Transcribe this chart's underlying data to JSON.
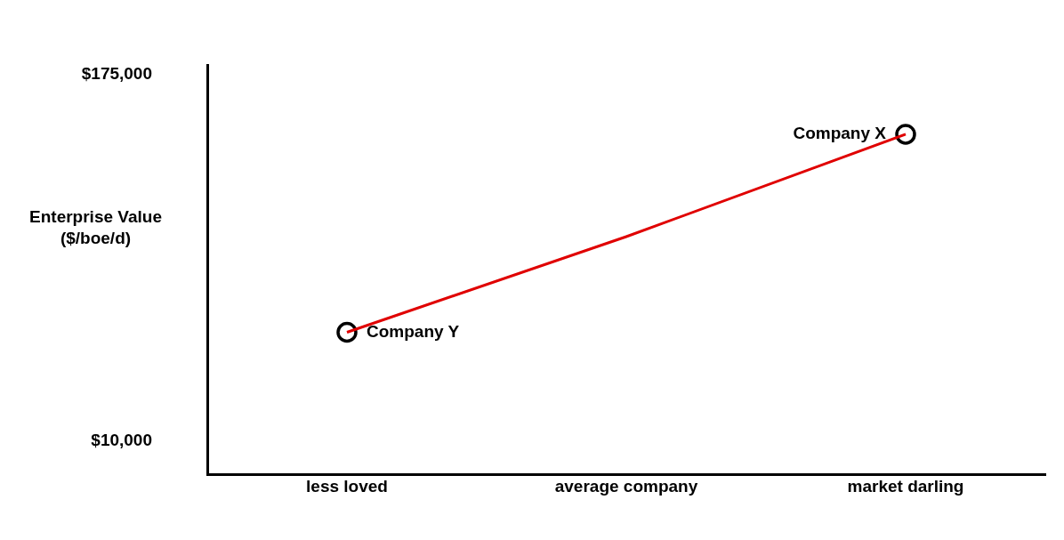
{
  "chart_data": {
    "type": "line",
    "ylabel": "Enterprise Value\n($/boe/d)",
    "categories": [
      "less loved",
      "average company",
      "market darling"
    ],
    "ylim": [
      -5000,
      179000
    ],
    "yticks": [
      {
        "value": 10000,
        "label": "$10,000"
      },
      {
        "value": 175000,
        "label": "$175,000"
      }
    ],
    "series": [
      {
        "color": "#e00000",
        "values": [
          59000,
          102000,
          148000
        ],
        "marker": "none"
      },
      {
        "type": "scatter",
        "color": "#000000",
        "x": [
          "less loved",
          "market darling"
        ],
        "values": [
          59000,
          148000
        ],
        "marker": "circle"
      }
    ],
    "annotations": [
      {
        "text": "Company Y",
        "x": "less loved",
        "y": 59000
      },
      {
        "text": "Company X",
        "x": "market darling",
        "y": 148000
      }
    ],
    "grid": false,
    "legend": false
  }
}
